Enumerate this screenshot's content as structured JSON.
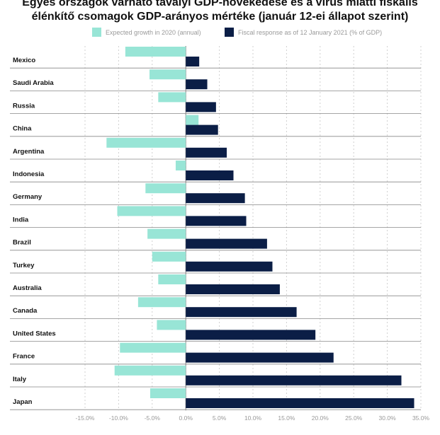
{
  "title_line1": "Egyes országok várható tavalyi GDP-növekedése és a vírus miatti fiskális",
  "title_line2": "élénkítő csomagok GDP-arányos mértéke (január 12-ei állapot szerint)",
  "colors": {
    "growth": "#98e5d6",
    "fiscal": "#0b1e46",
    "grid": "#d0d0d0",
    "axis": "#888888",
    "label": "#111111",
    "tick": "#999999"
  },
  "chart_data": {
    "type": "bar",
    "orientation": "horizontal",
    "title": "Egyes országok várható tavalyi GDP-növekedése és a vírus miatti fiskális élénkítő csomagok GDP-arányos mértéke (január 12-ei állapot szerint)",
    "categories": [
      "Mexico",
      "Saudi Arabia",
      "Russia",
      "China",
      "Argentina",
      "Indonesia",
      "Germany",
      "India",
      "Brazil",
      "Turkey",
      "Australia",
      "Canada",
      "United States",
      "France",
      "Italy",
      "Japan"
    ],
    "series": [
      {
        "name": "Expected growth in 2020 (annual)",
        "values": [
          -9.0,
          -5.4,
          -4.1,
          1.9,
          -11.8,
          -1.5,
          -6.0,
          -10.2,
          -5.7,
          -5.0,
          -4.1,
          -7.1,
          -4.3,
          -9.8,
          -10.6,
          -5.3
        ]
      },
      {
        "name": "Fiscal response as of 12 January 2021 (% of GDP)",
        "values": [
          2.0,
          3.2,
          4.5,
          4.8,
          6.1,
          7.1,
          8.8,
          9.0,
          12.1,
          12.9,
          14.0,
          16.5,
          19.3,
          22.0,
          32.1,
          34.0
        ]
      }
    ],
    "xlim": [
      -15,
      35
    ],
    "xticks": [
      -15,
      -10,
      -5,
      0,
      5,
      10,
      15,
      20,
      25,
      30,
      35
    ],
    "xtick_labels": [
      "-15.0%",
      "-10.0%",
      "-5.0%",
      "0.0%",
      "5.0%",
      "10.0%",
      "15.0%",
      "20.0%",
      "25.0%",
      "30.0%",
      "35.0%"
    ],
    "grid": true,
    "legend_position": "top-center"
  }
}
